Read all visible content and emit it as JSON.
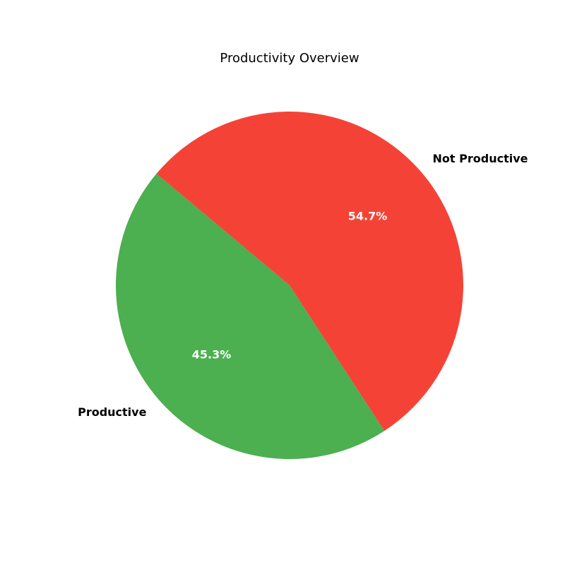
{
  "chart_data": {
    "type": "pie",
    "title": "Productivity Overview",
    "slices": [
      {
        "label": "Productive",
        "value": 45.3,
        "pct_label": "45.3%",
        "color": "#4caf50"
      },
      {
        "label": "Not Productive",
        "value": 54.7,
        "pct_label": "54.7%",
        "color": "#f44336"
      }
    ],
    "start_angle_deg": 140,
    "direction": "counterclockwise",
    "legend": "none"
  }
}
